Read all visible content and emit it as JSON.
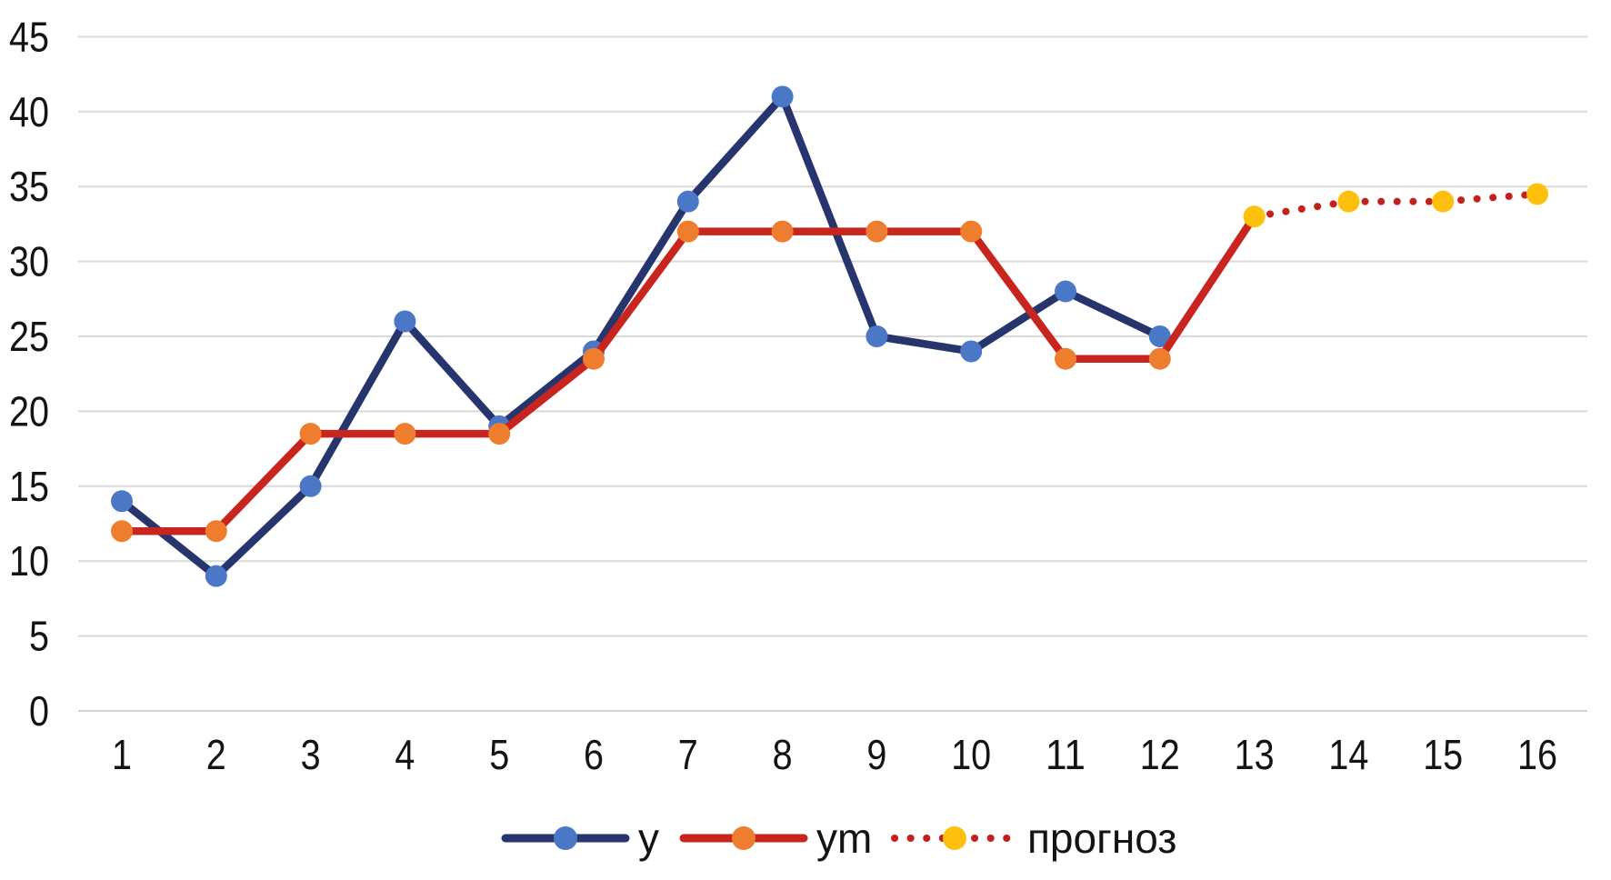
{
  "chart_data": {
    "type": "line",
    "title": "",
    "xlabel": "",
    "ylabel": "",
    "x_ticks": [
      1,
      2,
      3,
      4,
      5,
      6,
      7,
      8,
      9,
      10,
      11,
      12,
      13,
      14,
      15,
      16
    ],
    "y_ticks": [
      0,
      5,
      10,
      15,
      20,
      25,
      30,
      35,
      40,
      45
    ],
    "ylim": [
      0,
      45
    ],
    "xlim": [
      1,
      16
    ],
    "grid": "horizontal",
    "legend_position": "bottom",
    "colors": {
      "background": "#FFFFFF",
      "gridline": "#D9D9D9",
      "axis_line": "#D2D2D2",
      "tick_text": "#141414"
    },
    "series": [
      {
        "name": "y",
        "slug": "series-y",
        "line_style": "solid",
        "line_color": "#26356D",
        "marker_color": "#4A78C6",
        "marker_shape": "circle",
        "x": [
          1,
          2,
          3,
          4,
          5,
          6,
          7,
          8,
          9,
          10,
          11,
          12
        ],
        "values": [
          14,
          9,
          15,
          26,
          19,
          24,
          34,
          41,
          25,
          24,
          28,
          25
        ],
        "marker_on_last_point": true
      },
      {
        "name": "ym",
        "slug": "series-ym",
        "line_style": "solid",
        "line_color": "#C7251D",
        "marker_color": "#EF7D2E",
        "marker_shape": "circle",
        "x": [
          1,
          2,
          3,
          4,
          5,
          6,
          7,
          8,
          9,
          10,
          11,
          12,
          13
        ],
        "values": [
          12,
          12,
          18.5,
          18.5,
          18.5,
          23.5,
          32,
          32,
          32,
          32,
          23.5,
          23.5,
          33
        ],
        "marker_on_last_point": false
      },
      {
        "name": "прогноз",
        "slug": "series-forecast",
        "line_style": "dotted",
        "line_color": "#C2221F",
        "marker_color": "#FFC00D",
        "marker_shape": "circle",
        "x": [
          13,
          14,
          15,
          16
        ],
        "values": [
          33,
          34,
          34,
          34.5
        ],
        "marker_on_last_point": true
      }
    ],
    "legend": [
      {
        "label": "y"
      },
      {
        "label": "ym"
      },
      {
        "label": "прогноз"
      }
    ]
  }
}
